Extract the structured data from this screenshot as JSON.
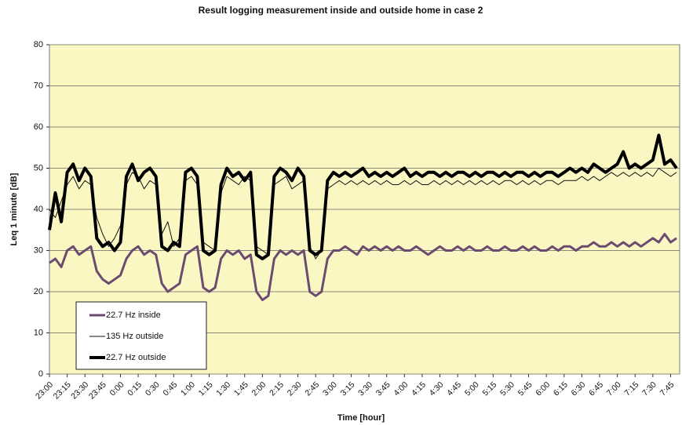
{
  "chart_data": {
    "type": "line",
    "title": "Result logging measurement inside and outside home in case 2",
    "x_label": "Time [hour]",
    "y_label": "Leq 1 minute [dB]",
    "ylim": [
      0,
      80
    ],
    "yticks": [
      0,
      10,
      20,
      30,
      40,
      50,
      60,
      70,
      80
    ],
    "grid": true,
    "legend": "lower left",
    "categories": [
      "23:00",
      null,
      null,
      "23:15",
      null,
      null,
      "23:30",
      null,
      null,
      "23:45",
      null,
      null,
      "0:00",
      null,
      null,
      "0:15",
      null,
      null,
      "0:30",
      null,
      null,
      "0:45",
      null,
      null,
      "1:00",
      null,
      null,
      "1:15",
      null,
      null,
      "1:30",
      null,
      null,
      "1:45",
      null,
      null,
      "2:00",
      null,
      null,
      "2:15",
      null,
      null,
      "2:30",
      null,
      null,
      "2:45",
      null,
      null,
      "3:00",
      null,
      null,
      "3:15",
      null,
      null,
      "3:30",
      null,
      null,
      "3:45",
      null,
      null,
      "4:00",
      null,
      null,
      "4:15",
      null,
      null,
      "4:30",
      null,
      null,
      "4:45",
      null,
      null,
      "5:00",
      null,
      null,
      "5:15",
      null,
      null,
      "5:30",
      null,
      null,
      "5:45",
      null,
      null,
      "6:00",
      null,
      null,
      "6:15",
      null,
      null,
      "6:30",
      null,
      null,
      "6:45",
      null,
      null,
      "7:00",
      null,
      null,
      "7:15",
      null,
      null,
      "7:30",
      null,
      null,
      "7:45",
      null
    ],
    "series": [
      {
        "name": "22.7 Hz inside",
        "color": "#6b4b70",
        "width": 3,
        "values": [
          27,
          28,
          26,
          30,
          31,
          29,
          30,
          31,
          25,
          23,
          22,
          23,
          24,
          28,
          30,
          31,
          29,
          30,
          29,
          22,
          20,
          21,
          22,
          29,
          30,
          31,
          21,
          20,
          21,
          28,
          30,
          29,
          30,
          28,
          29,
          20,
          18,
          19,
          28,
          30,
          29,
          30,
          29,
          30,
          20,
          19,
          20,
          28,
          30,
          30,
          31,
          30,
          29,
          31,
          30,
          31,
          30,
          31,
          30,
          31,
          30,
          30,
          31,
          30,
          29,
          30,
          31,
          30,
          30,
          31,
          30,
          31,
          30,
          30,
          31,
          30,
          30,
          31,
          30,
          30,
          31,
          30,
          31,
          30,
          30,
          31,
          30,
          31,
          31,
          30,
          31,
          31,
          32,
          31,
          31,
          32,
          31,
          32,
          31,
          32,
          31,
          32,
          33,
          32,
          34,
          32,
          33
        ]
      },
      {
        "name": "135 Hz outside",
        "color": "#111111",
        "width": 1,
        "values": [
          40,
          38,
          42,
          46,
          48,
          45,
          47,
          46,
          38,
          34,
          31,
          33,
          36,
          46,
          49,
          48,
          45,
          47,
          46,
          34,
          37,
          31,
          33,
          47,
          48,
          46,
          32,
          31,
          30,
          44,
          48,
          47,
          46,
          48,
          47,
          31,
          30,
          29,
          46,
          47,
          48,
          45,
          46,
          47,
          31,
          28,
          30,
          45,
          46,
          47,
          46,
          47,
          46,
          47,
          46,
          47,
          46,
          47,
          46,
          46,
          47,
          46,
          47,
          46,
          46,
          47,
          46,
          47,
          46,
          47,
          46,
          47,
          46,
          47,
          46,
          47,
          46,
          47,
          47,
          46,
          47,
          46,
          47,
          46,
          47,
          47,
          46,
          47,
          47,
          47,
          48,
          47,
          48,
          47,
          48,
          49,
          48,
          49,
          48,
          49,
          48,
          49,
          48,
          50,
          49,
          48,
          49
        ]
      },
      {
        "name": "22.7 Hz outside",
        "color": "#000000",
        "width": 4,
        "values": [
          35,
          44,
          37,
          49,
          51,
          47,
          50,
          48,
          33,
          31,
          32,
          30,
          32,
          48,
          51,
          47,
          49,
          50,
          48,
          31,
          30,
          32,
          31,
          49,
          50,
          48,
          30,
          29,
          30,
          46,
          50,
          48,
          49,
          47,
          49,
          29,
          28,
          29,
          48,
          50,
          49,
          47,
          50,
          48,
          30,
          29,
          30,
          47,
          49,
          48,
          49,
          48,
          49,
          50,
          48,
          49,
          48,
          49,
          48,
          49,
          50,
          48,
          49,
          48,
          49,
          49,
          48,
          49,
          48,
          49,
          49,
          48,
          49,
          48,
          49,
          49,
          48,
          49,
          48,
          49,
          49,
          48,
          49,
          48,
          49,
          49,
          48,
          49,
          50,
          49,
          50,
          49,
          51,
          50,
          49,
          50,
          51,
          54,
          50,
          51,
          50,
          51,
          52,
          58,
          51,
          52,
          50
        ]
      }
    ]
  }
}
